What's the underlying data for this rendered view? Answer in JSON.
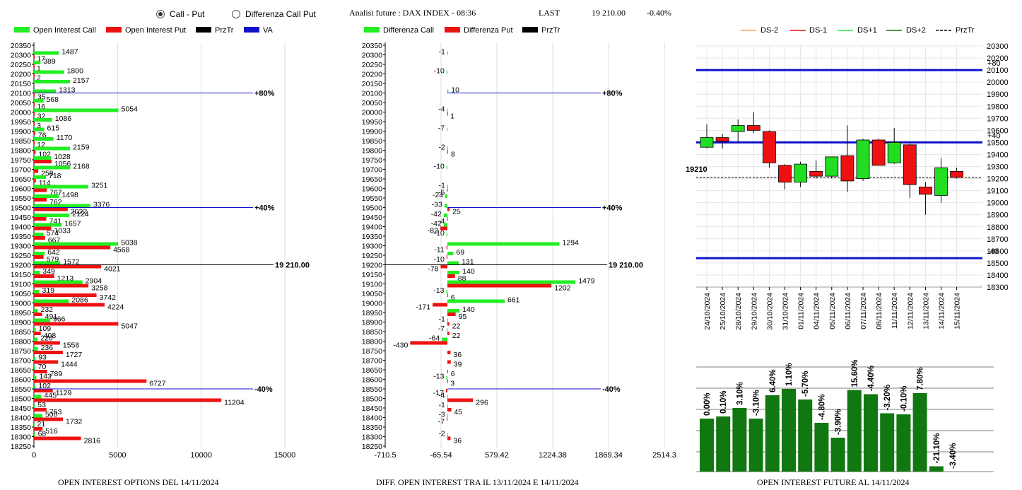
{
  "header": {
    "radio_call_put": "Call - Put",
    "radio_diff": "Differenza Call Put",
    "analysis": "Analisi future : DAX INDEX - 08:36",
    "last_label": "LAST",
    "last_value": "19 210.00",
    "change": "-0.40%"
  },
  "legend1": {
    "oi_call": "Open Interest Call",
    "oi_put": "Open Interest Put",
    "prztr": "PrzTr",
    "va": "VA"
  },
  "legend2": {
    "diff_call": "Differenza Call",
    "diff_put": "Differenza Put",
    "prztr": "PrzTr"
  },
  "legend3": {
    "ds_m2": "DS-2",
    "ds_m1": "DS-1",
    "ds_p1": "DS+1",
    "ds_p2": "DS+2",
    "prztr": "PrzTr"
  },
  "titles": {
    "chart1": "OPEN INTEREST OPTIONS DEL 14/11/2024",
    "chart2": "DIFF. OPEN INTEREST TRA IL 13/11/2024 E 14/11/2024",
    "chart3": "OPEN INTEREST FUTURE AL 14/11/2024"
  },
  "colors": {
    "call": "#22ee22",
    "put": "#ee1111",
    "prztr": "#000000",
    "va": "#1111cc",
    "oi_bar": "#117711",
    "green_candle": "#22dd22",
    "red_candle": "#ee1111"
  },
  "chart_data": [
    {
      "type": "bar",
      "orientation": "horizontal",
      "strikes": [
        20350,
        20300,
        20250,
        20200,
        20150,
        20100,
        20050,
        20000,
        19950,
        19900,
        19850,
        19800,
        19750,
        19700,
        19650,
        19600,
        19550,
        19500,
        19450,
        19400,
        19350,
        19300,
        19250,
        19200,
        19150,
        19100,
        19050,
        19000,
        18950,
        18900,
        18850,
        18800,
        18750,
        18700,
        18650,
        18600,
        18550,
        18500,
        18450,
        18400,
        18350,
        18300,
        18250
      ],
      "series": [
        {
          "name": "Open Interest Call",
          "values": [
            null,
            1487,
            389,
            1800,
            2157,
            1313,
            568,
            5054,
            1086,
            615,
            1170,
            2159,
            1028,
            2168,
            718,
            3251,
            1498,
            3376,
            2124,
            1657,
            574,
            5038,
            642,
            1572,
            349,
            2904,
            319,
            2086,
            232,
            966,
            109,
            220,
            236,
            93,
            70,
            143,
            102,
            445,
            53,
            500,
            21,
            68,
            null
          ]
        },
        {
          "name": "Open Interest Put",
          "values": [
            null,
            17,
            1,
            2,
            null,
            35,
            16,
            32,
            3,
            76,
            12,
            102,
            1056,
            258,
            114,
            767,
            762,
            2022,
            741,
            1033,
            667,
            4568,
            579,
            4021,
            1213,
            3258,
            3742,
            4224,
            491,
            5047,
            408,
            1558,
            1727,
            1444,
            789,
            6727,
            1129,
            11204,
            753,
            1732,
            516,
            2816,
            null
          ]
        }
      ],
      "xlim": [
        0,
        15000
      ],
      "xticks": [
        0,
        5000,
        10000,
        15000
      ],
      "reference_lines": [
        {
          "strike": 20100,
          "label": "+80%"
        },
        {
          "strike": 19500,
          "label": "+40%"
        },
        {
          "strike": 19200,
          "label": "19 210.00"
        },
        {
          "strike": 18550,
          "label": "-40%"
        }
      ]
    },
    {
      "type": "bar",
      "orientation": "horizontal",
      "strikes": [
        20350,
        20300,
        20250,
        20200,
        20150,
        20100,
        20050,
        20000,
        19950,
        19900,
        19850,
        19800,
        19750,
        19700,
        19650,
        19600,
        19550,
        19500,
        19450,
        19400,
        19350,
        19300,
        19250,
        19200,
        19150,
        19100,
        19050,
        19000,
        18950,
        18900,
        18850,
        18800,
        18750,
        18700,
        18650,
        18600,
        18550,
        18500,
        18450,
        18400,
        18350,
        18300,
        18250
      ],
      "series": [
        {
          "name": "Differenza Call",
          "values": [
            null,
            -1,
            null,
            -10,
            null,
            10,
            null,
            -4,
            null,
            -7,
            null,
            -2,
            null,
            -10,
            null,
            -1,
            -24,
            -33,
            -42,
            -42,
            -10,
            1294,
            69,
            131,
            140,
            1479,
            -13,
            661,
            140,
            -1,
            -7,
            -64,
            null,
            null,
            null,
            -13,
            null,
            -4,
            -1,
            -3,
            null,
            -2,
            null
          ]
        },
        {
          "name": "Differenza Put",
          "values": [
            null,
            null,
            null,
            null,
            null,
            null,
            null,
            1,
            null,
            null,
            null,
            8,
            null,
            null,
            null,
            -5,
            null,
            25,
            -4,
            -82,
            null,
            -11,
            -10,
            -78,
            88,
            1202,
            6,
            -171,
            95,
            22,
            22,
            -430,
            36,
            39,
            6,
            3,
            -17,
            296,
            45,
            -7,
            null,
            36,
            null
          ]
        }
      ],
      "xlim": [
        -710.5,
        2514.3
      ],
      "xticks": [
        "-710.5",
        "-65.54",
        "579.42",
        "1224.38",
        "1869.34",
        "2514.3"
      ],
      "reference_lines": [
        {
          "strike": 20100,
          "label": "+80%"
        },
        {
          "strike": 19500,
          "label": "+40%"
        },
        {
          "strike": 19200,
          "label": "19 210.00"
        },
        {
          "strike": 18550,
          "label": "-40%"
        }
      ]
    },
    {
      "type": "candlestick",
      "dates": [
        "24/10/2024",
        "25/10/2024",
        "28/10/2024",
        "29/10/2024",
        "30/10/2024",
        "31/10/2024",
        "01/11/2024",
        "04/11/2024",
        "05/11/2024",
        "06/11/2024",
        "07/11/2024",
        "08/11/2024",
        "11/11/2024",
        "12/11/2024",
        "13/11/2024",
        "14/11/2024",
        "15/11/2024"
      ],
      "ohlc": [
        [
          19460,
          19650,
          19450,
          19540
        ],
        [
          19540,
          19570,
          19450,
          19510
        ],
        [
          19590,
          19690,
          19500,
          19640
        ],
        [
          19640,
          19750,
          19580,
          19600
        ],
        [
          19590,
          19600,
          19290,
          19330
        ],
        [
          19310,
          19320,
          19110,
          19170
        ],
        [
          19170,
          19340,
          19130,
          19320
        ],
        [
          19260,
          19350,
          19200,
          19220
        ],
        [
          19220,
          19380,
          19200,
          19380
        ],
        [
          19390,
          19640,
          19090,
          19180
        ],
        [
          19200,
          19530,
          19180,
          19520
        ],
        [
          19520,
          19530,
          19310,
          19310
        ],
        [
          19330,
          19620,
          19320,
          19500
        ],
        [
          19480,
          19490,
          19040,
          19150
        ],
        [
          19130,
          19170,
          18900,
          19070
        ],
        [
          19060,
          19370,
          19000,
          19290
        ],
        [
          19260,
          19290,
          19200,
          19210
        ]
      ],
      "ylim": [
        18300,
        20300
      ],
      "yticks": [
        20300,
        20200,
        20100,
        20000,
        19900,
        19800,
        19700,
        19600,
        19500,
        19400,
        19300,
        19200,
        19100,
        19000,
        18900,
        18800,
        18700,
        18600,
        18500,
        18400,
        18300
      ],
      "lines": [
        {
          "label": "+80",
          "value": 20100
        },
        {
          "label": "+40",
          "value": 19500
        },
        {
          "label": "-40",
          "value": 18540
        }
      ],
      "przTr": 19210,
      "przTr_label": "19210",
      "series_legend": [
        "DS-2",
        "DS-1",
        "DS+1",
        "DS+2",
        "PrzTr"
      ]
    },
    {
      "type": "bar",
      "categories": [
        "24/10/2024",
        "25/10/2024",
        "28/10/2024",
        "29/10/2024",
        "30/10/2024",
        "31/10/2024",
        "01/11/2024",
        "04/11/2024",
        "05/11/2024",
        "06/11/2024",
        "07/11/2024",
        "08/11/2024",
        "11/11/2024",
        "12/11/2024",
        "13/11/2024",
        "14/11/2024"
      ],
      "values": [
        0.5,
        0.52,
        0.6,
        0.5,
        0.72,
        0.78,
        0.68,
        0.46,
        0.32,
        0.77,
        0.73,
        0.55,
        0.54,
        0.74,
        0.05,
        0
      ],
      "labels": [
        "0.00%",
        "0.10%",
        "3.10%",
        "-3.10%",
        "6.40%",
        "1.10%",
        "-5.70%",
        "-4.80%",
        "-3.90%",
        "15.60%",
        "-4.40%",
        "-3.20%",
        "-0.10%",
        "7.80%",
        "-21.10%",
        "-3.40%"
      ]
    }
  ]
}
